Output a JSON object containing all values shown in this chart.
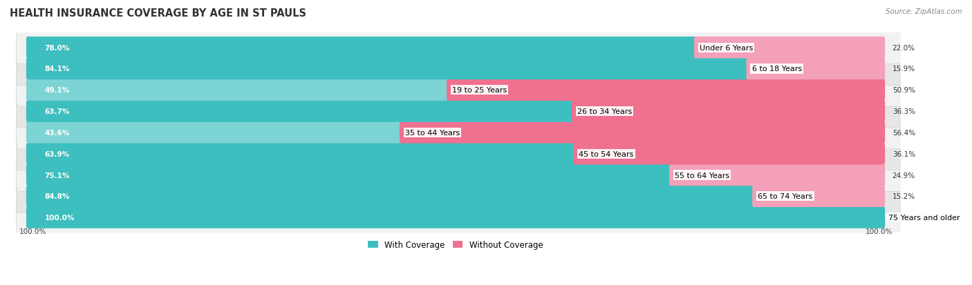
{
  "title": "HEALTH INSURANCE COVERAGE BY AGE IN ST PAULS",
  "source": "Source: ZipAtlas.com",
  "categories": [
    "Under 6 Years",
    "6 to 18 Years",
    "19 to 25 Years",
    "26 to 34 Years",
    "35 to 44 Years",
    "45 to 54 Years",
    "55 to 64 Years",
    "65 to 74 Years",
    "75 Years and older"
  ],
  "with_coverage": [
    78.0,
    84.1,
    49.1,
    63.7,
    43.6,
    63.9,
    75.1,
    84.8,
    100.0
  ],
  "without_coverage": [
    22.0,
    15.9,
    50.9,
    36.3,
    56.4,
    36.1,
    24.9,
    15.2,
    0.0
  ],
  "color_with": "#3dbfbf",
  "color_with_light": "#7dd4d4",
  "color_without": "#f07090",
  "color_without_light": "#f4a0b8",
  "row_bg_odd": "#f0f0f0",
  "row_bg_even": "#e8e8e8",
  "title_fontsize": 10.5,
  "label_fontsize": 8,
  "bar_label_fontsize": 7.5,
  "legend_fontsize": 8.5,
  "total_width": 100.0
}
